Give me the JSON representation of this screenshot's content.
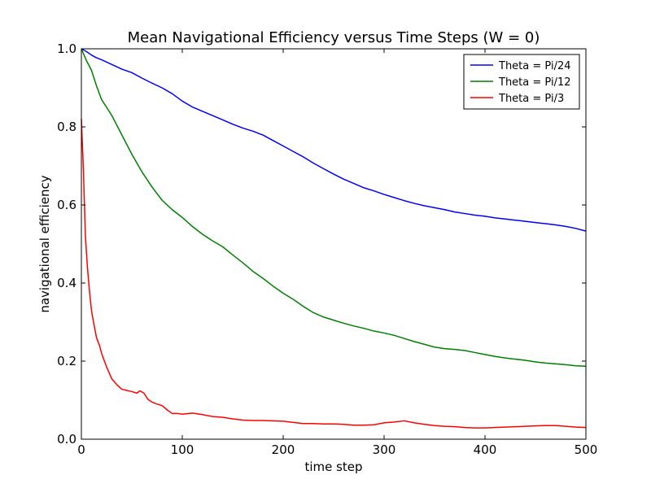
{
  "chart_data": {
    "type": "line",
    "title": "Mean Navigational Efficiency versus Time Steps (W = 0)",
    "xlabel": "time step",
    "ylabel": "navigational efficiency",
    "xlim": [
      0,
      500
    ],
    "ylim": [
      0.0,
      1.0
    ],
    "xticks": [
      0,
      100,
      200,
      300,
      400,
      500
    ],
    "xtick_labels": [
      "0",
      "100",
      "200",
      "300",
      "400",
      "500"
    ],
    "yticks": [
      0.0,
      0.2,
      0.4,
      0.6,
      0.8,
      1.0
    ],
    "ytick_labels": [
      "0.0",
      "0.2",
      "0.4",
      "0.6",
      "0.8",
      "1.0"
    ],
    "grid": false,
    "legend_position": "top-right",
    "series": [
      {
        "name": "Theta = Pi/24",
        "color": "#0000ff",
        "x": [
          0,
          5,
          10,
          15,
          20,
          25,
          30,
          40,
          50,
          60,
          70,
          80,
          90,
          100,
          110,
          120,
          130,
          140,
          150,
          160,
          170,
          180,
          190,
          200,
          210,
          220,
          230,
          240,
          250,
          260,
          270,
          280,
          290,
          300,
          310,
          320,
          330,
          340,
          350,
          360,
          370,
          380,
          390,
          400,
          410,
          420,
          430,
          440,
          450,
          460,
          470,
          480,
          490,
          500
        ],
        "y": [
          1.0,
          0.993,
          0.984,
          0.977,
          0.972,
          0.966,
          0.96,
          0.948,
          0.939,
          0.925,
          0.912,
          0.9,
          0.885,
          0.866,
          0.851,
          0.84,
          0.829,
          0.818,
          0.807,
          0.797,
          0.789,
          0.779,
          0.765,
          0.751,
          0.737,
          0.723,
          0.707,
          0.693,
          0.679,
          0.666,
          0.655,
          0.644,
          0.636,
          0.627,
          0.619,
          0.611,
          0.604,
          0.598,
          0.593,
          0.588,
          0.582,
          0.578,
          0.574,
          0.571,
          0.567,
          0.564,
          0.561,
          0.558,
          0.555,
          0.552,
          0.549,
          0.545,
          0.54,
          0.533
        ]
      },
      {
        "name": "Theta = Pi/12",
        "color": "#008000",
        "x": [
          0,
          5,
          10,
          15,
          20,
          25,
          30,
          35,
          40,
          50,
          60,
          70,
          80,
          90,
          100,
          110,
          120,
          130,
          140,
          150,
          160,
          170,
          180,
          190,
          200,
          210,
          220,
          230,
          240,
          250,
          260,
          270,
          280,
          290,
          300,
          310,
          320,
          330,
          340,
          350,
          360,
          370,
          380,
          390,
          400,
          410,
          420,
          430,
          440,
          450,
          460,
          470,
          480,
          490,
          500
        ],
        "y": [
          1.0,
          0.97,
          0.945,
          0.905,
          0.87,
          0.85,
          0.83,
          0.805,
          0.78,
          0.73,
          0.685,
          0.646,
          0.612,
          0.588,
          0.568,
          0.545,
          0.525,
          0.508,
          0.493,
          0.472,
          0.452,
          0.43,
          0.412,
          0.392,
          0.374,
          0.358,
          0.34,
          0.324,
          0.313,
          0.305,
          0.297,
          0.29,
          0.284,
          0.277,
          0.272,
          0.266,
          0.258,
          0.25,
          0.243,
          0.236,
          0.232,
          0.23,
          0.227,
          0.222,
          0.217,
          0.212,
          0.208,
          0.205,
          0.202,
          0.198,
          0.195,
          0.193,
          0.191,
          0.188,
          0.187
        ]
      },
      {
        "name": "Theta = Pi/3",
        "color": "#ff0000",
        "x": [
          0,
          2,
          4,
          6,
          8,
          10,
          12,
          15,
          18,
          20,
          25,
          30,
          35,
          40,
          45,
          50,
          55,
          58,
          62,
          66,
          70,
          75,
          80,
          85,
          90,
          95,
          100,
          110,
          120,
          130,
          140,
          150,
          160,
          170,
          180,
          190,
          200,
          210,
          220,
          230,
          240,
          250,
          260,
          270,
          280,
          290,
          300,
          310,
          320,
          330,
          340,
          350,
          360,
          370,
          380,
          390,
          400,
          410,
          420,
          430,
          440,
          450,
          460,
          470,
          480,
          490,
          500
        ],
        "y": [
          0.82,
          0.69,
          0.52,
          0.44,
          0.38,
          0.33,
          0.3,
          0.26,
          0.24,
          0.22,
          0.185,
          0.155,
          0.14,
          0.128,
          0.125,
          0.122,
          0.118,
          0.124,
          0.118,
          0.102,
          0.095,
          0.09,
          0.086,
          0.075,
          0.066,
          0.066,
          0.064,
          0.067,
          0.063,
          0.058,
          0.056,
          0.052,
          0.049,
          0.048,
          0.048,
          0.047,
          0.046,
          0.043,
          0.04,
          0.04,
          0.039,
          0.039,
          0.038,
          0.036,
          0.036,
          0.037,
          0.042,
          0.044,
          0.047,
          0.042,
          0.038,
          0.035,
          0.033,
          0.032,
          0.03,
          0.029,
          0.029,
          0.03,
          0.031,
          0.032,
          0.033,
          0.034,
          0.035,
          0.035,
          0.033,
          0.031,
          0.03
        ]
      }
    ]
  }
}
